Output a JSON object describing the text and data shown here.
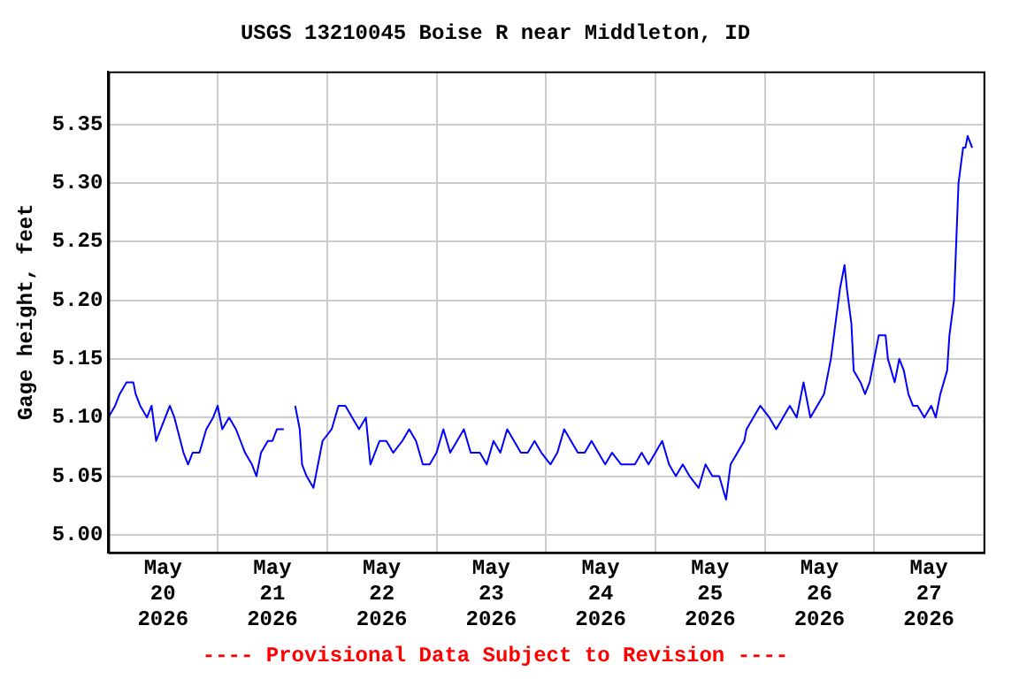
{
  "chart_data": {
    "type": "line",
    "title": "USGS 13210045 Boise R near Middleton, ID",
    "ylabel": "Gage height, feet",
    "annotations": [
      "---- Provisional Data Subject to Revision ----"
    ],
    "xlim": [
      "2026-05-20T00:00",
      "2026-05-28T00:00"
    ],
    "xticks": [
      {
        "value": "2026-05-20T00:00",
        "label": null
      },
      {
        "value": "2026-05-20T12:00",
        "label": "May\n20\n2026"
      },
      {
        "value": "2026-05-21T00:00",
        "label": null
      },
      {
        "value": "2026-05-21T12:00",
        "label": "May\n21\n2026"
      },
      {
        "value": "2026-05-22T00:00",
        "label": null
      },
      {
        "value": "2026-05-22T12:00",
        "label": "May\n22\n2026"
      },
      {
        "value": "2026-05-23T00:00",
        "label": null
      },
      {
        "value": "2026-05-23T12:00",
        "label": "May\n23\n2026"
      },
      {
        "value": "2026-05-24T00:00",
        "label": null
      },
      {
        "value": "2026-05-24T12:00",
        "label": "May\n24\n2026"
      },
      {
        "value": "2026-05-25T00:00",
        "label": null
      },
      {
        "value": "2026-05-25T12:00",
        "label": "May\n25\n2026"
      },
      {
        "value": "2026-05-26T00:00",
        "label": null
      },
      {
        "value": "2026-05-26T12:00",
        "label": "May\n26\n2026"
      },
      {
        "value": "2026-05-27T00:00",
        "label": null
      },
      {
        "value": "2026-05-27T12:00",
        "label": "May\n27\n2026"
      },
      {
        "value": "2026-05-28T00:00",
        "label": null
      }
    ],
    "ylim": [
      4.985,
      5.395
    ],
    "yticks": [
      {
        "value": 5,
        "label": "5.00"
      },
      {
        "value": 5.05,
        "label": "5.05"
      },
      {
        "value": 5.1,
        "label": "5.10"
      },
      {
        "value": 5.15,
        "label": "5.15"
      },
      {
        "value": 5.2,
        "label": "5.20"
      },
      {
        "value": 5.25,
        "label": "5.25"
      },
      {
        "value": 5.3,
        "label": "5.30"
      },
      {
        "value": 5.35,
        "label": "5.35"
      }
    ],
    "grid": true,
    "legend": false,
    "marker": "none",
    "line_style": "solid",
    "x": [
      "2026-05-20T00:00",
      "2026-05-20T01:30",
      "2026-05-20T02:30",
      "2026-05-20T04:00",
      "2026-05-20T05:30",
      "2026-05-20T06:00",
      "2026-05-20T07:00",
      "2026-05-20T08:30",
      "2026-05-20T09:30",
      "2026-05-20T10:30",
      "2026-05-20T11:30",
      "2026-05-20T12:30",
      "2026-05-20T13:30",
      "2026-05-20T14:30",
      "2026-05-20T16:30",
      "2026-05-20T17:30",
      "2026-05-20T18:30",
      "2026-05-20T20:00",
      "2026-05-20T21:30",
      "2026-05-20T23:00",
      "2026-05-21T00:00",
      "2026-05-21T01:00",
      "2026-05-21T02:30",
      "2026-05-21T04:00",
      "2026-05-21T05:00",
      "2026-05-21T06:00",
      "2026-05-21T07:30",
      "2026-05-21T08:30",
      "2026-05-21T09:30",
      "2026-05-21T11:00",
      "2026-05-21T12:00",
      "2026-05-21T13:00",
      "2026-05-21T14:30",
      "2026-05-21T15:30",
      "2026-05-21T17:00",
      "2026-05-21T18:00",
      "2026-05-21T18:30",
      "2026-05-21T19:30",
      "2026-05-21T21:00",
      "2026-05-21T22:00",
      "2026-05-21T23:00",
      "2026-05-22T01:00",
      "2026-05-22T02:30",
      "2026-05-22T04:00",
      "2026-05-22T05:30",
      "2026-05-22T07:00",
      "2026-05-22T08:30",
      "2026-05-22T09:30",
      "2026-05-22T11:30",
      "2026-05-22T13:00",
      "2026-05-22T14:30",
      "2026-05-22T16:30",
      "2026-05-22T18:00",
      "2026-05-22T19:30",
      "2026-05-22T21:00",
      "2026-05-22T22:30",
      "2026-05-23T00:00",
      "2026-05-23T01:30",
      "2026-05-23T03:00",
      "2026-05-23T04:30",
      "2026-05-23T06:00",
      "2026-05-23T07:30",
      "2026-05-23T09:30",
      "2026-05-23T11:00",
      "2026-05-23T12:30",
      "2026-05-23T14:00",
      "2026-05-23T15:30",
      "2026-05-23T17:00",
      "2026-05-23T18:30",
      "2026-05-23T20:00",
      "2026-05-23T21:30",
      "2026-05-23T23:00",
      "2026-05-24T01:00",
      "2026-05-24T02:30",
      "2026-05-24T04:00",
      "2026-05-24T05:30",
      "2026-05-24T07:00",
      "2026-05-24T08:30",
      "2026-05-24T10:00",
      "2026-05-24T11:30",
      "2026-05-24T13:00",
      "2026-05-24T14:30",
      "2026-05-24T16:30",
      "2026-05-24T18:00",
      "2026-05-24T19:30",
      "2026-05-24T21:00",
      "2026-05-24T22:30",
      "2026-05-25T00:00",
      "2026-05-25T01:30",
      "2026-05-25T03:00",
      "2026-05-25T04:30",
      "2026-05-25T06:00",
      "2026-05-25T07:30",
      "2026-05-25T09:30",
      "2026-05-25T11:00",
      "2026-05-25T12:30",
      "2026-05-25T14:00",
      "2026-05-25T15:30",
      "2026-05-25T16:30",
      "2026-05-25T18:00",
      "2026-05-25T19:30",
      "2026-05-25T20:00",
      "2026-05-25T21:30",
      "2026-05-25T23:00",
      "2026-05-26T01:00",
      "2026-05-26T02:30",
      "2026-05-26T04:00",
      "2026-05-26T05:30",
      "2026-05-26T07:00",
      "2026-05-26T08:30",
      "2026-05-26T10:00",
      "2026-05-26T11:30",
      "2026-05-26T13:00",
      "2026-05-26T14:30",
      "2026-05-26T15:30",
      "2026-05-26T16:30",
      "2026-05-26T17:30",
      "2026-05-26T18:00",
      "2026-05-26T19:00",
      "2026-05-26T19:30",
      "2026-05-26T21:00",
      "2026-05-26T22:00",
      "2026-05-26T23:00",
      "2026-05-27T00:00",
      "2026-05-27T01:00",
      "2026-05-27T02:30",
      "2026-05-27T03:00",
      "2026-05-27T04:30",
      "2026-05-27T05:30",
      "2026-05-27T06:30",
      "2026-05-27T07:30",
      "2026-05-27T08:30",
      "2026-05-27T09:30",
      "2026-05-27T11:00",
      "2026-05-27T12:30",
      "2026-05-27T13:30",
      "2026-05-27T14:30",
      "2026-05-27T16:00",
      "2026-05-27T16:30",
      "2026-05-27T17:30",
      "2026-05-27T18:00",
      "2026-05-27T18:30",
      "2026-05-27T19:30",
      "2026-05-27T20:00",
      "2026-05-27T20:30",
      "2026-05-27T21:30"
    ],
    "series": [
      {
        "color": "#0000ff",
        "values": [
          5.1,
          5.11,
          5.12,
          5.13,
          5.13,
          5.12,
          5.11,
          5.1,
          5.11,
          5.08,
          5.09,
          5.1,
          5.11,
          5.1,
          5.07,
          5.06,
          5.07,
          5.07,
          5.09,
          5.1,
          5.11,
          5.09,
          5.1,
          5.09,
          5.08,
          5.07,
          5.06,
          5.05,
          5.07,
          5.08,
          5.08,
          5.09,
          5.09,
          null,
          5.11,
          5.09,
          5.06,
          5.05,
          5.04,
          5.06,
          5.08,
          5.09,
          5.11,
          5.11,
          5.1,
          5.09,
          5.1,
          5.06,
          5.08,
          5.08,
          5.07,
          5.08,
          5.09,
          5.08,
          5.06,
          5.06,
          5.07,
          5.09,
          5.07,
          5.08,
          5.09,
          5.07,
          5.07,
          5.06,
          5.08,
          5.07,
          5.09,
          5.08,
          5.07,
          5.07,
          5.08,
          5.07,
          5.06,
          5.07,
          5.09,
          5.08,
          5.07,
          5.07,
          5.08,
          5.07,
          5.06,
          5.07,
          5.06,
          5.06,
          5.06,
          5.07,
          5.06,
          5.07,
          5.08,
          5.06,
          5.05,
          5.06,
          5.05,
          5.04,
          5.06,
          5.05,
          5.05,
          5.03,
          5.06,
          5.07,
          5.08,
          5.09,
          5.1,
          5.11,
          5.1,
          5.09,
          5.1,
          5.11,
          5.1,
          5.13,
          5.1,
          5.11,
          5.12,
          5.15,
          5.18,
          5.21,
          5.23,
          5.21,
          5.18,
          5.14,
          5.13,
          5.12,
          5.13,
          5.15,
          5.17,
          5.17,
          5.15,
          5.13,
          5.15,
          5.14,
          5.12,
          5.11,
          5.11,
          5.1,
          5.11,
          5.1,
          5.12,
          5.14,
          5.17,
          5.2,
          5.25,
          5.3,
          5.33,
          5.33,
          5.34,
          5.33
        ]
      }
    ]
  }
}
